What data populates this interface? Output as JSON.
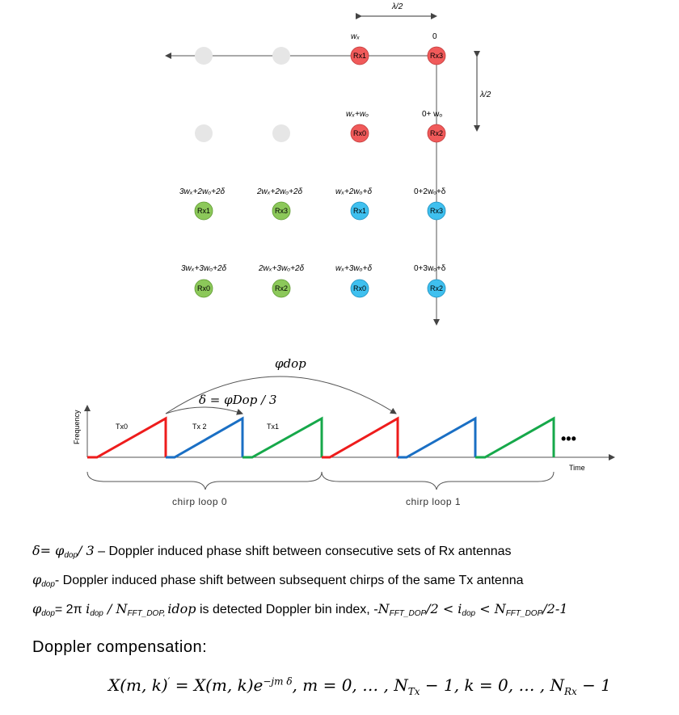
{
  "array": {
    "top_spacing": "λ/2",
    "side_spacing": "λ/2",
    "col_headers": [
      "wₓ",
      "0"
    ],
    "row2_headers": [
      "wₓ+wₒ",
      "0+ wₒ"
    ],
    "virtual_rows": [
      {
        "phases": [
          "3wₓ+2wₒ+2δ",
          "2wₓ+2wₒ+2δ",
          "wₓ+2wₒ+δ",
          "0+2wₒ+δ"
        ],
        "nodes": [
          "Rx1",
          "Rx3",
          "Rx1",
          "Rx3"
        ]
      },
      {
        "phases": [
          "3wₓ+3wₒ+2δ",
          "2wₓ+3wₒ+2δ",
          "wₓ+3wₒ+δ",
          "0+3wₒ+δ"
        ],
        "nodes": [
          "Rx0",
          "Rx2",
          "Rx0",
          "Rx2"
        ]
      }
    ],
    "red_nodes": [
      "Rx1",
      "Rx3",
      "Rx0",
      "Rx2"
    ],
    "colors": {
      "red": "#f05a5a",
      "blue": "#3fc0ef",
      "green": "#8cc85a",
      "gray": "#e6e6e6"
    }
  },
  "chirp": {
    "phi_label": "φdop",
    "delta_label": "δ = φDop / 3",
    "y_axis": "Frequency",
    "x_axis": "Time",
    "tx_labels": [
      "Tx0",
      "Tx 2",
      "Tx1"
    ],
    "ellipsis": "•••",
    "brace_labels": [
      "chirp loop 0",
      "chirp loop 1"
    ],
    "colors": {
      "tx0": "#ee1c1c",
      "tx2": "#1a6fc4",
      "tx1": "#16a84a"
    }
  },
  "text": {
    "line1_a": "δ= ",
    "line1_b": "φ",
    "line1_c": "dop",
    "line1_d": "/ 3",
    "line1_e": " – Doppler induced phase shift between consecutive sets of Rx antennas",
    "line2_a": "φ",
    "line2_b": "dop",
    "line2_c": "- Doppler induced phase shift between subsequent chirps of the same Tx antenna",
    "line3_a": "φ",
    "line3_b": "dop",
    "line3_c": "= 2π ",
    "line3_d": "i",
    "line3_e": "dop",
    "line3_f": " / N",
    "line3_g": "FFT_DOP, ",
    "line3_h": "idop",
    "line3_i": " is detected Doppler bin index, ",
    "line3_j": "-N",
    "line3_k": "FFT_DOP",
    "line3_l": "/2 < i",
    "line3_m": "dop",
    "line3_n": " < N",
    "line3_o": "FFT_DOP",
    "line3_p": "/2-1",
    "title": "Doppler compensation:",
    "formula_a": "X(m, k)",
    "formula_b": "′",
    "formula_c": " = X(m, k)e",
    "formula_d": "−jm δ",
    "formula_e": ", m = 0, … , N",
    "formula_f": "Tx",
    "formula_g": " − 1, k = 0, … , N",
    "formula_h": "Rx",
    "formula_i": " − 1"
  }
}
